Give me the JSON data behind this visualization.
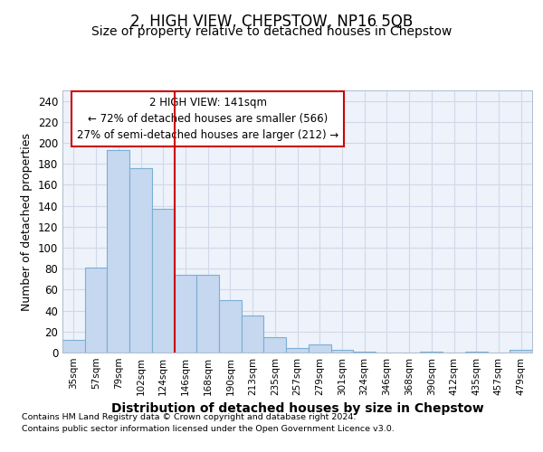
{
  "title": "2, HIGH VIEW, CHEPSTOW, NP16 5QB",
  "subtitle": "Size of property relative to detached houses in Chepstow",
  "xlabel": "Distribution of detached houses by size in Chepstow",
  "ylabel": "Number of detached properties",
  "categories": [
    "35sqm",
    "57sqm",
    "79sqm",
    "102sqm",
    "124sqm",
    "146sqm",
    "168sqm",
    "190sqm",
    "213sqm",
    "235sqm",
    "257sqm",
    "279sqm",
    "301sqm",
    "324sqm",
    "346sqm",
    "368sqm",
    "390sqm",
    "412sqm",
    "435sqm",
    "457sqm",
    "479sqm"
  ],
  "values": [
    12,
    81,
    193,
    176,
    137,
    74,
    74,
    50,
    35,
    15,
    4,
    8,
    3,
    1,
    0,
    0,
    1,
    0,
    1,
    0,
    3
  ],
  "bar_color": "#c5d8f0",
  "bar_edge_color": "#7bafd4",
  "vline_x": 4.5,
  "vline_color": "#cc0000",
  "annotation_text": "2 HIGH VIEW: 141sqm\n← 72% of detached houses are smaller (566)\n27% of semi-detached houses are larger (212) →",
  "annotation_box_color": "#ffffff",
  "annotation_box_edge": "#cc0000",
  "ylim": [
    0,
    250
  ],
  "yticks": [
    0,
    20,
    40,
    60,
    80,
    100,
    120,
    140,
    160,
    180,
    200,
    220,
    240
  ],
  "grid_color": "#d0d9e8",
  "footer_line1": "Contains HM Land Registry data © Crown copyright and database right 2024.",
  "footer_line2": "Contains public sector information licensed under the Open Government Licence v3.0.",
  "bg_color": "#edf2fb",
  "title_fontsize": 12,
  "subtitle_fontsize": 10,
  "xlabel_fontsize": 10,
  "ylabel_fontsize": 9,
  "annotation_fontsize": 8.5
}
